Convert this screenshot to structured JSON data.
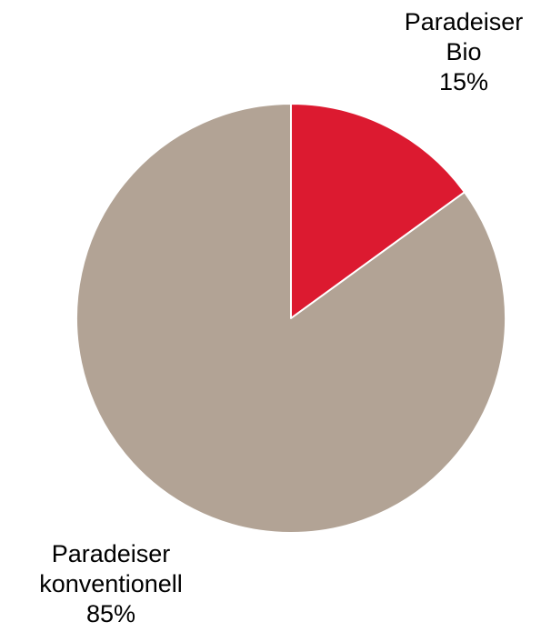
{
  "chart_data": {
    "type": "pie",
    "title": "",
    "slices": [
      {
        "name": "Paradeiser Bio",
        "label_lines": [
          "Paradeiser",
          "Bio"
        ],
        "value": 15,
        "value_label": "15%",
        "color": "#dc1a30"
      },
      {
        "name": "Paradeiser konventionell",
        "label_lines": [
          "Paradeiser",
          "konventionell"
        ],
        "value": 85,
        "value_label": "85%",
        "color": "#b2a395"
      }
    ],
    "start_angle": "12 o'clock",
    "direction": "clockwise",
    "legend": "none",
    "slice_border_color": "#ffffff"
  }
}
